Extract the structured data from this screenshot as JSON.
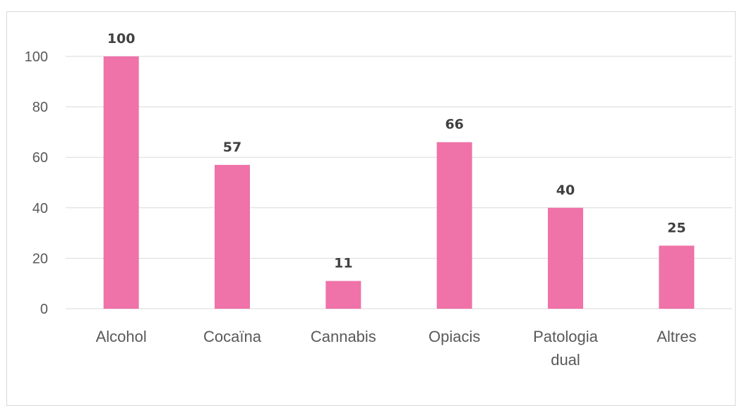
{
  "chart_data": {
    "type": "bar",
    "categories": [
      "Alcohol",
      "Cocaïna",
      "Cannabis",
      "Opiacis",
      "Patologia dual",
      "Altres"
    ],
    "category_lines": [
      [
        "Alcohol"
      ],
      [
        "Cocaïna"
      ],
      [
        "Cannabis"
      ],
      [
        "Opiacis"
      ],
      [
        "Patologia",
        "dual"
      ],
      [
        "Altres"
      ]
    ],
    "values": [
      100,
      57,
      11,
      66,
      40,
      25
    ],
    "value_labels": [
      "100",
      "57",
      "11",
      "66",
      "40",
      "25"
    ],
    "ylim": [
      0,
      100
    ],
    "yticks": [
      0,
      20,
      40,
      60,
      80,
      100
    ],
    "ytick_labels": [
      "0",
      "20",
      "40",
      "60",
      "80",
      "100"
    ],
    "grid": true,
    "bar_color": "#ef72a8",
    "grid_color": "#d9d9d9",
    "title": "",
    "xlabel": "",
    "ylabel": ""
  }
}
